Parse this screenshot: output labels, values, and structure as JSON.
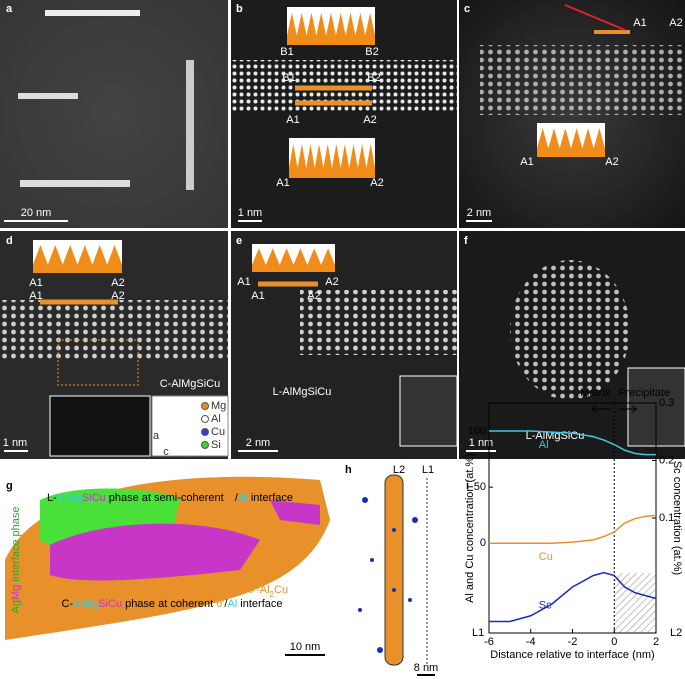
{
  "panels": {
    "a": {
      "label": "a",
      "scale_bar": "20 nm"
    },
    "b": {
      "label": "b",
      "markers": [
        "B1",
        "B2",
        "B1",
        "B2",
        "A1",
        "A2",
        "A1",
        "A2"
      ],
      "scale_bar": "1 nm"
    },
    "c": {
      "label": "c",
      "markers": [
        "A1",
        "A2",
        "A1",
        "A2"
      ],
      "scale_bar": "2 nm"
    },
    "d": {
      "label": "d",
      "markers": [
        "A1",
        "A2",
        "A1",
        "A2"
      ],
      "phase": "C-AlMgSiCu",
      "legend": [
        "Mg",
        "Al",
        "Cu",
        "Si"
      ],
      "axes": [
        "a",
        "c"
      ],
      "scale_bar": "1 nm"
    },
    "e": {
      "label": "e",
      "markers": [
        "A1",
        "A2",
        "A1",
        "A2"
      ],
      "phase": "L-AlMgSiCu",
      "scale_bar": "2 nm"
    },
    "f": {
      "label": "f",
      "phase": "L-AlMgSiCu",
      "scale_bar": "1 nm"
    },
    "g": {
      "label": "g",
      "top_caption": [
        "L-",
        "AlMg",
        "SiCu",
        " phase at semi-coherent ",
        "θ′",
        "/",
        "Al",
        " interface"
      ],
      "side_caption": [
        "Ag",
        "Mg",
        " interface phase"
      ],
      "precipitate": [
        "θ′-Al",
        "2",
        "Cu"
      ],
      "bottom_caption": [
        "C-",
        "AlMg",
        "SiCu",
        " phase at coherent ",
        "θ′",
        "/",
        "Al",
        " interface"
      ],
      "scale_bar": "10 nm"
    },
    "h": {
      "label": "h",
      "markers": [
        "L2",
        "L1"
      ],
      "scale_bar": "8 nm"
    }
  },
  "chart_data": {
    "type": "line",
    "label": "i",
    "x_label": "Distance relative to interface (nm)",
    "y_label": "Al and Cu concentration (at.%)",
    "y2_label": "Sc concentration (at.%)",
    "annotations": [
      "Matrix",
      "Precipitate",
      "L1",
      "L2"
    ],
    "x": [
      -6,
      -5,
      -4,
      -3,
      -2,
      -1,
      -0.5,
      0,
      0.5,
      1,
      1.5,
      2
    ],
    "series": [
      {
        "name": "Al",
        "color": "#3cc8e0",
        "values": [
          100,
          100,
          100,
          99,
          98,
          95,
          92,
          88,
          83,
          80,
          79,
          79
        ]
      },
      {
        "name": "Cu",
        "color": "#e8902a",
        "values": [
          0,
          0,
          0,
          0,
          1,
          3,
          6,
          10,
          18,
          22,
          24,
          25
        ]
      },
      {
        "name": "Sc",
        "color": "#1a2db8",
        "axis": "y2",
        "values": [
          -0.08,
          -0.08,
          -0.07,
          -0.05,
          -0.02,
          0,
          0.005,
          0,
          -0.02,
          -0.03,
          -0.035,
          -0.04
        ]
      }
    ],
    "xlim": [
      -6,
      2
    ],
    "xticks": [
      -6,
      -4,
      -2,
      0,
      2
    ],
    "ylim": [
      -80,
      125
    ],
    "yticks": [
      0,
      50,
      100
    ],
    "y2lim": [
      -0.1,
      0.3
    ],
    "y2ticks": [
      0.1,
      0.2,
      0.3
    ]
  }
}
